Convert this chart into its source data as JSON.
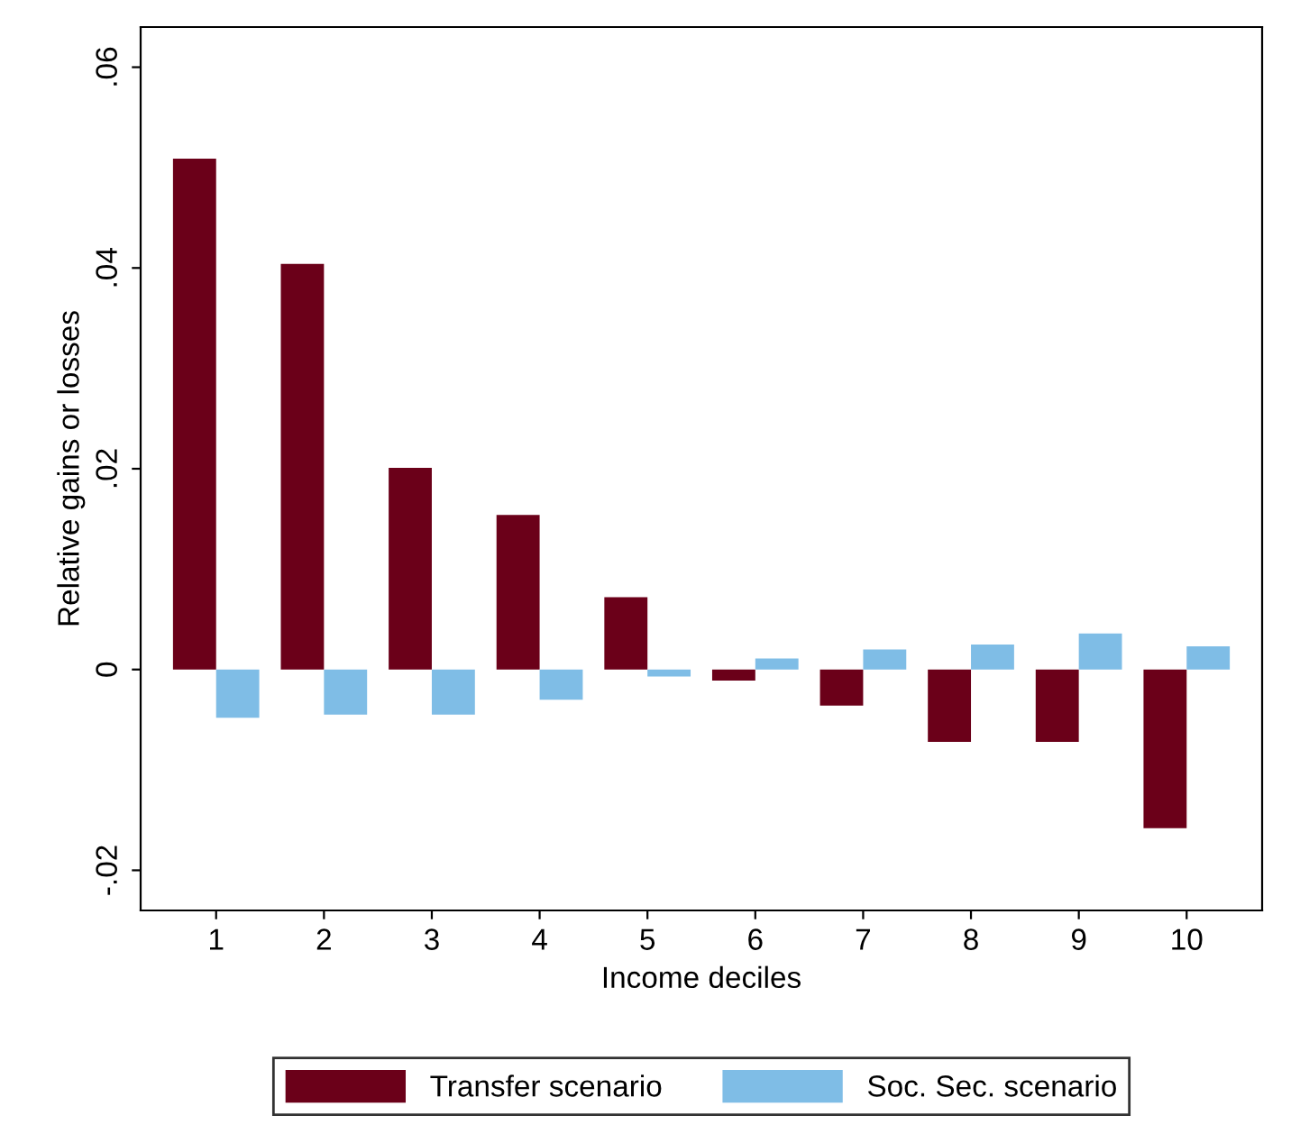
{
  "chart_data": {
    "type": "bar",
    "xlabel": "Income deciles",
    "ylabel": "Relative gains or losses",
    "categories": [
      "1",
      "2",
      "3",
      "4",
      "5",
      "6",
      "7",
      "8",
      "9",
      "10"
    ],
    "series": [
      {
        "name": "Transfer scenario",
        "color": "#6b0019",
        "values": [
          0.0509,
          0.0404,
          0.0201,
          0.0154,
          0.0072,
          -0.0011,
          -0.0036,
          -0.0072,
          -0.0072,
          -0.0158
        ]
      },
      {
        "name": "Soc. Sec. scenario",
        "color": "#7fbde6",
        "values": [
          -0.0048,
          -0.0045,
          -0.0045,
          -0.003,
          -0.0007,
          0.0011,
          0.002,
          0.0025,
          0.0036,
          0.0023
        ]
      }
    ],
    "ylim": [
      -0.024,
      0.064
    ],
    "yticks": [
      {
        "value": -0.02,
        "label": "-.02"
      },
      {
        "value": 0,
        "label": "0"
      },
      {
        "value": 0.02,
        "label": ".02"
      },
      {
        "value": 0.04,
        "label": ".04"
      },
      {
        "value": 0.06,
        "label": ".06"
      }
    ],
    "grid": false,
    "legend": "bottom"
  }
}
